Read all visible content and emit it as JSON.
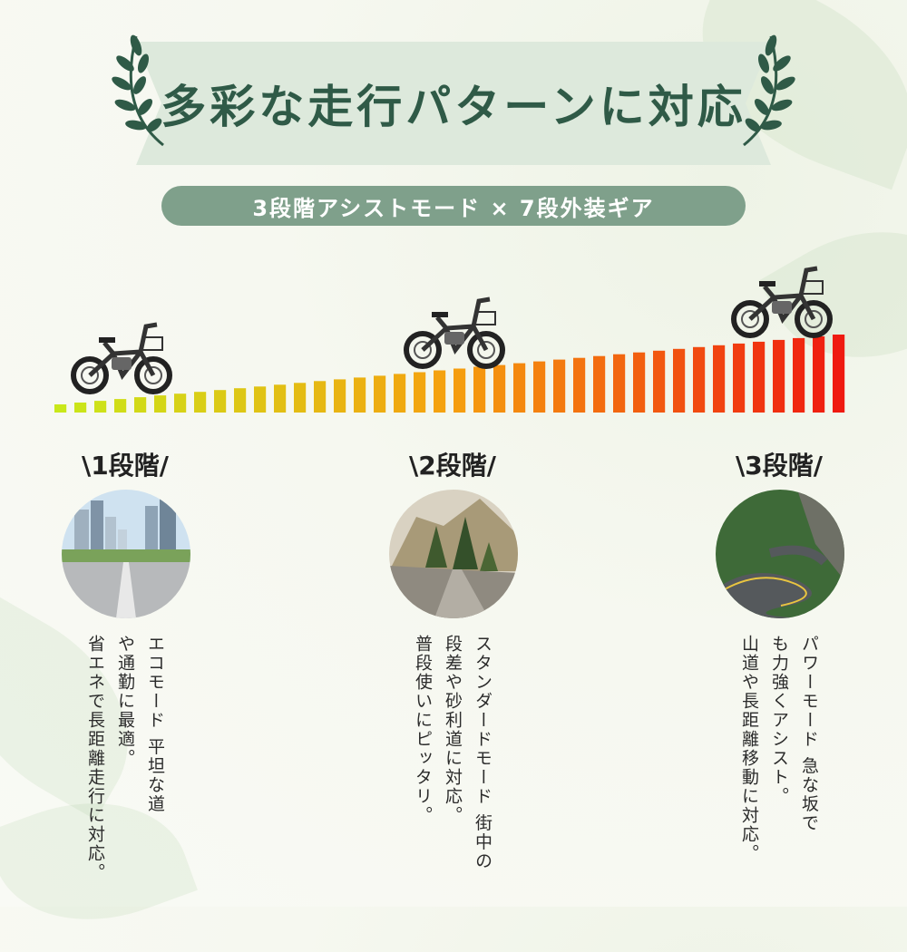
{
  "title": "多彩な走行パターンに対応",
  "subtitle": "3段階アシストモード × 7段外装ギア",
  "levels": [
    {
      "label": "\\1段階/",
      "image": "city-road",
      "line1": "エコモード 平坦な道",
      "line2": "や通勤に最適。",
      "line3": "省エネで長距離走行に対応。"
    },
    {
      "label": "\\2段階/",
      "image": "gravel-path",
      "line1": "スタンダードモード 街中の",
      "line2": "段差や砂利道に対応。",
      "line3": "普段使いにピッタリ。"
    },
    {
      "label": "\\3段階/",
      "image": "mountain-road",
      "line1": "パワーモード 急な坂で",
      "line2": "も力強くアシスト。",
      "line3": "山道や長距離移動に対応。"
    }
  ],
  "colors": {
    "banner": "#dde9dc",
    "title": "#2f5a47",
    "pill": "#7fa08b",
    "gradient_start": "#c9e81a",
    "gradient_mid": "#f5a00f",
    "gradient_end": "#ef1a10"
  },
  "icons": [
    "laurel-icon",
    "bike-icon"
  ]
}
